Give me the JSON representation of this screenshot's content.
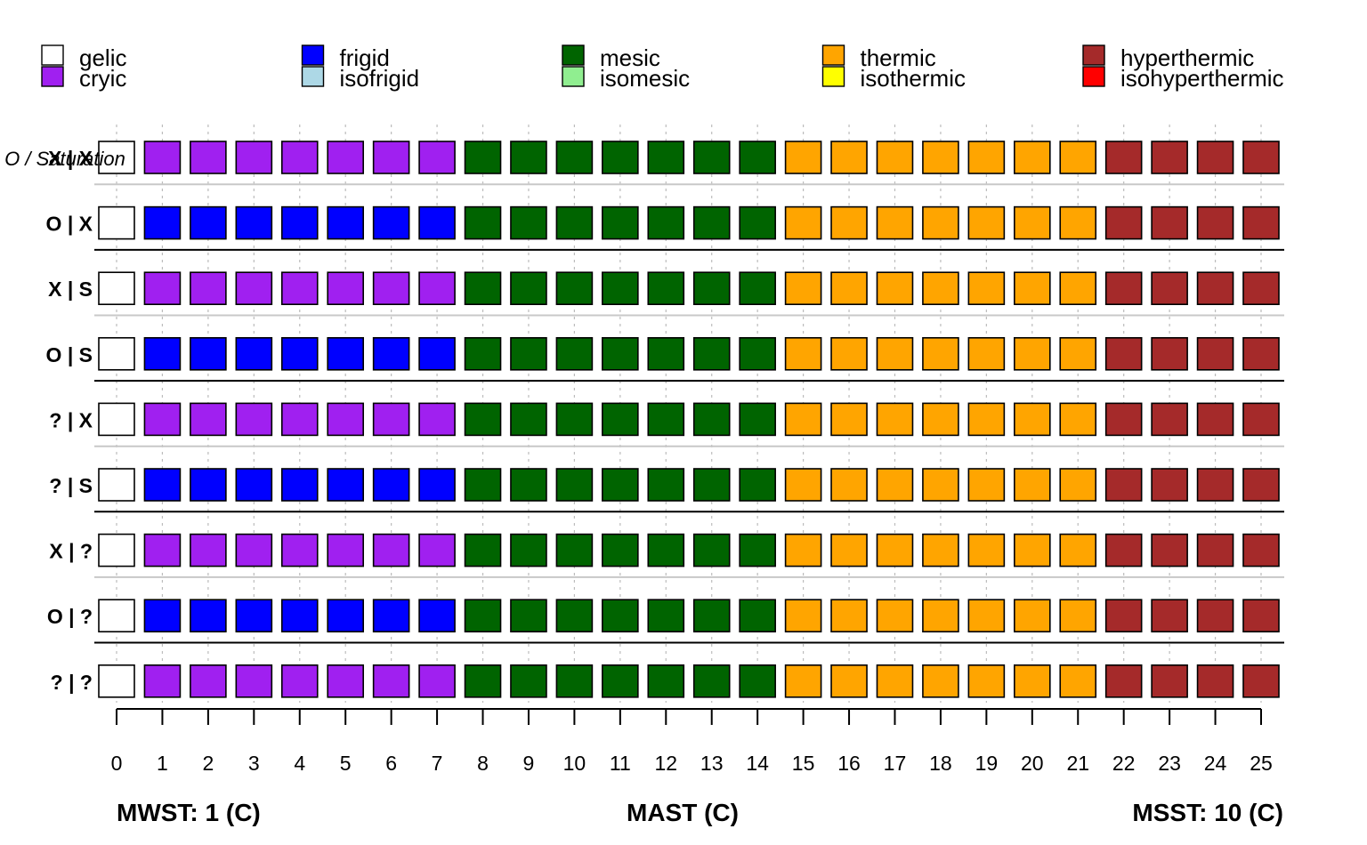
{
  "legend": {
    "groups": [
      {
        "upper": {
          "label": "gelic",
          "color": "#FFFFFF"
        },
        "lower": {
          "label": "cryic",
          "color": "#A020F0"
        }
      },
      {
        "upper": {
          "label": "frigid",
          "color": "#0000FF"
        },
        "lower": {
          "label": "isofrigid",
          "color": "#ADD8E6"
        }
      },
      {
        "upper": {
          "label": "mesic",
          "color": "#006400"
        },
        "lower": {
          "label": "isomesic",
          "color": "#90EE90"
        }
      },
      {
        "upper": {
          "label": "thermic",
          "color": "#FFA500"
        },
        "lower": {
          "label": "isothermic",
          "color": "#FFFF00"
        }
      },
      {
        "upper": {
          "label": "hyperthermic",
          "color": "#A52A2A"
        },
        "lower": {
          "label": "isohyperthermic",
          "color": "#FF0000"
        }
      }
    ]
  },
  "overlay_label": "O / Saturation",
  "x_titles": {
    "left": "MWST: 1 (C)",
    "center": "MAST (C)",
    "right": "MSST: 10 (C)"
  },
  "chart_data": {
    "type": "heatmap",
    "x": [
      0,
      1,
      2,
      3,
      4,
      5,
      6,
      7,
      8,
      9,
      10,
      11,
      12,
      13,
      14,
      15,
      16,
      17,
      18,
      19,
      20,
      21,
      22,
      23,
      24,
      25
    ],
    "x_tick_labels": [
      "0",
      "1",
      "2",
      "3",
      "4",
      "5",
      "6",
      "7",
      "8",
      "9",
      "10",
      "11",
      "12",
      "13",
      "14",
      "15",
      "16",
      "17",
      "18",
      "19",
      "20",
      "21",
      "22",
      "23",
      "24",
      "25"
    ],
    "rows": [
      "X | X",
      "O | X",
      "X | S",
      "O | S",
      "? | X",
      "? | S",
      "X | ?",
      "O | ?",
      "? | ?"
    ],
    "cells": [
      [
        "gelic",
        "cryic",
        "cryic",
        "cryic",
        "cryic",
        "cryic",
        "cryic",
        "cryic",
        "mesic",
        "mesic",
        "mesic",
        "mesic",
        "mesic",
        "mesic",
        "mesic",
        "thermic",
        "thermic",
        "thermic",
        "thermic",
        "thermic",
        "thermic",
        "thermic",
        "hyperthermic",
        "hyperthermic",
        "hyperthermic",
        "hyperthermic"
      ],
      [
        "gelic",
        "frigid",
        "frigid",
        "frigid",
        "frigid",
        "frigid",
        "frigid",
        "frigid",
        "mesic",
        "mesic",
        "mesic",
        "mesic",
        "mesic",
        "mesic",
        "mesic",
        "thermic",
        "thermic",
        "thermic",
        "thermic",
        "thermic",
        "thermic",
        "thermic",
        "hyperthermic",
        "hyperthermic",
        "hyperthermic",
        "hyperthermic"
      ],
      [
        "gelic",
        "cryic",
        "cryic",
        "cryic",
        "cryic",
        "cryic",
        "cryic",
        "cryic",
        "mesic",
        "mesic",
        "mesic",
        "mesic",
        "mesic",
        "mesic",
        "mesic",
        "thermic",
        "thermic",
        "thermic",
        "thermic",
        "thermic",
        "thermic",
        "thermic",
        "hyperthermic",
        "hyperthermic",
        "hyperthermic",
        "hyperthermic"
      ],
      [
        "gelic",
        "frigid",
        "frigid",
        "frigid",
        "frigid",
        "frigid",
        "frigid",
        "frigid",
        "mesic",
        "mesic",
        "mesic",
        "mesic",
        "mesic",
        "mesic",
        "mesic",
        "thermic",
        "thermic",
        "thermic",
        "thermic",
        "thermic",
        "thermic",
        "thermic",
        "hyperthermic",
        "hyperthermic",
        "hyperthermic",
        "hyperthermic"
      ],
      [
        "gelic",
        "cryic",
        "cryic",
        "cryic",
        "cryic",
        "cryic",
        "cryic",
        "cryic",
        "mesic",
        "mesic",
        "mesic",
        "mesic",
        "mesic",
        "mesic",
        "mesic",
        "thermic",
        "thermic",
        "thermic",
        "thermic",
        "thermic",
        "thermic",
        "thermic",
        "hyperthermic",
        "hyperthermic",
        "hyperthermic",
        "hyperthermic"
      ],
      [
        "gelic",
        "frigid",
        "frigid",
        "frigid",
        "frigid",
        "frigid",
        "frigid",
        "frigid",
        "mesic",
        "mesic",
        "mesic",
        "mesic",
        "mesic",
        "mesic",
        "mesic",
        "thermic",
        "thermic",
        "thermic",
        "thermic",
        "thermic",
        "thermic",
        "thermic",
        "hyperthermic",
        "hyperthermic",
        "hyperthermic",
        "hyperthermic"
      ],
      [
        "gelic",
        "cryic",
        "cryic",
        "cryic",
        "cryic",
        "cryic",
        "cryic",
        "cryic",
        "mesic",
        "mesic",
        "mesic",
        "mesic",
        "mesic",
        "mesic",
        "mesic",
        "thermic",
        "thermic",
        "thermic",
        "thermic",
        "thermic",
        "thermic",
        "thermic",
        "hyperthermic",
        "hyperthermic",
        "hyperthermic",
        "hyperthermic"
      ],
      [
        "gelic",
        "frigid",
        "frigid",
        "frigid",
        "frigid",
        "frigid",
        "frigid",
        "frigid",
        "mesic",
        "mesic",
        "mesic",
        "mesic",
        "mesic",
        "mesic",
        "mesic",
        "thermic",
        "thermic",
        "thermic",
        "thermic",
        "thermic",
        "thermic",
        "thermic",
        "hyperthermic",
        "hyperthermic",
        "hyperthermic",
        "hyperthermic"
      ],
      [
        "gelic",
        "cryic",
        "cryic",
        "cryic",
        "cryic",
        "cryic",
        "cryic",
        "cryic",
        "mesic",
        "mesic",
        "mesic",
        "mesic",
        "mesic",
        "mesic",
        "mesic",
        "thermic",
        "thermic",
        "thermic",
        "thermic",
        "thermic",
        "thermic",
        "thermic",
        "hyperthermic",
        "hyperthermic",
        "hyperthermic",
        "hyperthermic"
      ]
    ],
    "row_separators": [
      "light",
      "dark",
      "light",
      "dark",
      "light",
      "dark",
      "light",
      "dark"
    ],
    "grid": true,
    "legend_position": "top"
  }
}
